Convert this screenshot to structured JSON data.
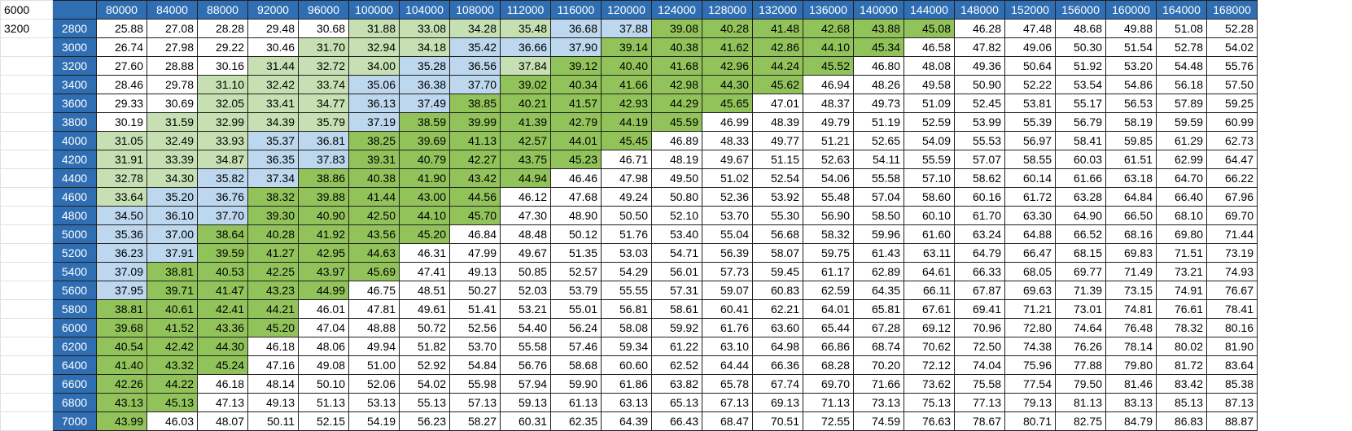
{
  "sheet": {
    "corner_a1": "6000",
    "corner_a2": "3200",
    "column_headers": [
      "80000",
      "84000",
      "88000",
      "92000",
      "96000",
      "100000",
      "104000",
      "108000",
      "112000",
      "116000",
      "120000",
      "124000",
      "128000",
      "132000",
      "136000",
      "140000",
      "144000",
      "148000",
      "152000",
      "156000",
      "160000",
      "164000",
      "168000"
    ],
    "rows": [
      {
        "label": "2800",
        "values": [
          "25.88",
          "27.08",
          "28.28",
          "29.48",
          "30.68",
          "31.88",
          "33.08",
          "34.28",
          "35.48",
          "36.68",
          "37.88",
          "39.08",
          "40.28",
          "41.48",
          "42.68",
          "43.88",
          "45.08",
          "46.28",
          "47.48",
          "48.68",
          "49.88",
          "51.08",
          "52.28"
        ],
        "colors": "WWWWWLLLLBBGGGGGGWWWWWW"
      },
      {
        "label": "3000",
        "values": [
          "26.74",
          "27.98",
          "29.22",
          "30.46",
          "31.70",
          "32.94",
          "34.18",
          "35.42",
          "36.66",
          "37.90",
          "39.14",
          "40.38",
          "41.62",
          "42.86",
          "44.10",
          "45.34",
          "46.58",
          "47.82",
          "49.06",
          "50.30",
          "51.54",
          "52.78",
          "54.02"
        ],
        "colors": "WWWWLLLBBBGGGGGGWWWWWWW"
      },
      {
        "label": "3200",
        "values": [
          "27.60",
          "28.88",
          "30.16",
          "31.44",
          "32.72",
          "34.00",
          "35.28",
          "36.56",
          "37.84",
          "39.12",
          "40.40",
          "41.68",
          "42.96",
          "44.24",
          "45.52",
          "46.80",
          "48.08",
          "49.36",
          "50.64",
          "51.92",
          "53.20",
          "54.48",
          "55.76"
        ],
        "colors": "WWWLLLBBLGGGGGGWWWWWWWW"
      },
      {
        "label": "3400",
        "values": [
          "28.46",
          "29.78",
          "31.10",
          "32.42",
          "33.74",
          "35.06",
          "36.38",
          "37.70",
          "39.02",
          "40.34",
          "41.66",
          "42.98",
          "44.30",
          "45.62",
          "46.94",
          "48.26",
          "49.58",
          "50.90",
          "52.22",
          "53.54",
          "54.86",
          "56.18",
          "57.50"
        ],
        "colors": "WWLLLBBBGGGGGGWWWWWWWWW"
      },
      {
        "label": "3600",
        "values": [
          "29.33",
          "30.69",
          "32.05",
          "33.41",
          "34.77",
          "36.13",
          "37.49",
          "38.85",
          "40.21",
          "41.57",
          "42.93",
          "44.29",
          "45.65",
          "47.01",
          "48.37",
          "49.73",
          "51.09",
          "52.45",
          "53.81",
          "55.17",
          "56.53",
          "57.89",
          "59.25"
        ],
        "colors": "WWLLLBBGGGGGGWWWWWWWWWW"
      },
      {
        "label": "3800",
        "values": [
          "30.19",
          "31.59",
          "32.99",
          "34.39",
          "35.79",
          "37.19",
          "38.59",
          "39.99",
          "41.39",
          "42.79",
          "44.19",
          "45.59",
          "46.99",
          "48.39",
          "49.79",
          "51.19",
          "52.59",
          "53.99",
          "55.39",
          "56.79",
          "58.19",
          "59.59",
          "60.99"
        ],
        "colors": "WLLLLBGGGGGGWWWWWWWWWWW"
      },
      {
        "label": "4000",
        "values": [
          "31.05",
          "32.49",
          "33.93",
          "35.37",
          "36.81",
          "38.25",
          "39.69",
          "41.13",
          "42.57",
          "44.01",
          "45.45",
          "46.89",
          "48.33",
          "49.77",
          "51.21",
          "52.65",
          "54.09",
          "55.53",
          "56.97",
          "58.41",
          "59.85",
          "61.29",
          "62.73"
        ],
        "colors": "LLLBBGGGGGGWWWWWWWWWWWW"
      },
      {
        "label": "4200",
        "values": [
          "31.91",
          "33.39",
          "34.87",
          "36.35",
          "37.83",
          "39.31",
          "40.79",
          "42.27",
          "43.75",
          "45.23",
          "46.71",
          "48.19",
          "49.67",
          "51.15",
          "52.63",
          "54.11",
          "55.59",
          "57.07",
          "58.55",
          "60.03",
          "61.51",
          "62.99",
          "64.47"
        ],
        "colors": "LLLBBGGGGGWWWWWWWWWWWWW"
      },
      {
        "label": "4400",
        "values": [
          "32.78",
          "34.30",
          "35.82",
          "37.34",
          "38.86",
          "40.38",
          "41.90",
          "43.42",
          "44.94",
          "46.46",
          "47.98",
          "49.50",
          "51.02",
          "52.54",
          "54.06",
          "55.58",
          "57.10",
          "58.62",
          "60.14",
          "61.66",
          "63.18",
          "64.70",
          "66.22"
        ],
        "colors": "LLBBGGGGGWWWWWWWWWWWWWW"
      },
      {
        "label": "4600",
        "values": [
          "33.64",
          "35.20",
          "36.76",
          "38.32",
          "39.88",
          "41.44",
          "43.00",
          "44.56",
          "46.12",
          "47.68",
          "49.24",
          "50.80",
          "52.36",
          "53.92",
          "55.48",
          "57.04",
          "58.60",
          "60.16",
          "61.72",
          "63.28",
          "64.84",
          "66.40",
          "67.96"
        ],
        "colors": "LBBGGGGGWWWWWWWWWWWWWWW"
      },
      {
        "label": "4800",
        "values": [
          "34.50",
          "36.10",
          "37.70",
          "39.30",
          "40.90",
          "42.50",
          "44.10",
          "45.70",
          "47.30",
          "48.90",
          "50.50",
          "52.10",
          "53.70",
          "55.30",
          "56.90",
          "58.50",
          "60.10",
          "61.70",
          "63.30",
          "64.90",
          "66.50",
          "68.10",
          "69.70"
        ],
        "colors": "BBBGGGGGWWWWWWWWWWWWWWW"
      },
      {
        "label": "5000",
        "values": [
          "35.36",
          "37.00",
          "38.64",
          "40.28",
          "41.92",
          "43.56",
          "45.20",
          "46.84",
          "48.48",
          "50.12",
          "51.76",
          "53.40",
          "55.04",
          "56.68",
          "58.32",
          "59.96",
          "61.60",
          "63.24",
          "64.88",
          "66.52",
          "68.16",
          "69.80",
          "71.44"
        ],
        "colors": "BBGGGGGWWWWWWWWWWWWWWWW"
      },
      {
        "label": "5200",
        "values": [
          "36.23",
          "37.91",
          "39.59",
          "41.27",
          "42.95",
          "44.63",
          "46.31",
          "47.99",
          "49.67",
          "51.35",
          "53.03",
          "54.71",
          "56.39",
          "58.07",
          "59.75",
          "61.43",
          "63.11",
          "64.79",
          "66.47",
          "68.15",
          "69.83",
          "71.51",
          "73.19"
        ],
        "colors": "BBGGGGWWWWWWWWWWWWWWWWW"
      },
      {
        "label": "5400",
        "values": [
          "37.09",
          "38.81",
          "40.53",
          "42.25",
          "43.97",
          "45.69",
          "47.41",
          "49.13",
          "50.85",
          "52.57",
          "54.29",
          "56.01",
          "57.73",
          "59.45",
          "61.17",
          "62.89",
          "64.61",
          "66.33",
          "68.05",
          "69.77",
          "71.49",
          "73.21",
          "74.93"
        ],
        "colors": "BGGGGGWWWWWWWWWWWWWWWWW"
      },
      {
        "label": "5600",
        "values": [
          "37.95",
          "39.71",
          "41.47",
          "43.23",
          "44.99",
          "46.75",
          "48.51",
          "50.27",
          "52.03",
          "53.79",
          "55.55",
          "57.31",
          "59.07",
          "60.83",
          "62.59",
          "64.35",
          "66.11",
          "67.87",
          "69.63",
          "71.39",
          "73.15",
          "74.91",
          "76.67"
        ],
        "colors": "BGGGGWWWWWWWWWWWWWWWWWW"
      },
      {
        "label": "5800",
        "values": [
          "38.81",
          "40.61",
          "42.41",
          "44.21",
          "46.01",
          "47.81",
          "49.61",
          "51.41",
          "53.21",
          "55.01",
          "56.81",
          "58.61",
          "60.41",
          "62.21",
          "64.01",
          "65.81",
          "67.61",
          "69.41",
          "71.21",
          "73.01",
          "74.81",
          "76.61",
          "78.41"
        ],
        "colors": "GGGGWWWWWWWWWWWWWWWWWWW"
      },
      {
        "label": "6000",
        "values": [
          "39.68",
          "41.52",
          "43.36",
          "45.20",
          "47.04",
          "48.88",
          "50.72",
          "52.56",
          "54.40",
          "56.24",
          "58.08",
          "59.92",
          "61.76",
          "63.60",
          "65.44",
          "67.28",
          "69.12",
          "70.96",
          "72.80",
          "74.64",
          "76.48",
          "78.32",
          "80.16"
        ],
        "colors": "GGGGWWWWWWWWWWWWWWWWWWW"
      },
      {
        "label": "6200",
        "values": [
          "40.54",
          "42.42",
          "44.30",
          "46.18",
          "48.06",
          "49.94",
          "51.82",
          "53.70",
          "55.58",
          "57.46",
          "59.34",
          "61.22",
          "63.10",
          "64.98",
          "66.86",
          "68.74",
          "70.62",
          "72.50",
          "74.38",
          "76.26",
          "78.14",
          "80.02",
          "81.90"
        ],
        "colors": "GGGWWWWWWWWWWWWWWWWWWWW"
      },
      {
        "label": "6400",
        "values": [
          "41.40",
          "43.32",
          "45.24",
          "47.16",
          "49.08",
          "51.00",
          "52.92",
          "54.84",
          "56.76",
          "58.68",
          "60.60",
          "62.52",
          "64.44",
          "66.36",
          "68.28",
          "70.20",
          "72.12",
          "74.04",
          "75.96",
          "77.88",
          "79.80",
          "81.72",
          "83.64"
        ],
        "colors": "GGGWWWWWWWWWWWWWWWWWWWW"
      },
      {
        "label": "6600",
        "values": [
          "42.26",
          "44.22",
          "46.18",
          "48.14",
          "50.10",
          "52.06",
          "54.02",
          "55.98",
          "57.94",
          "59.90",
          "61.86",
          "63.82",
          "65.78",
          "67.74",
          "69.70",
          "71.66",
          "73.62",
          "75.58",
          "77.54",
          "79.50",
          "81.46",
          "83.42",
          "85.38"
        ],
        "colors": "GGWWWWWWWWWWWWWWWWWWWWW"
      },
      {
        "label": "6800",
        "values": [
          "43.13",
          "45.13",
          "47.13",
          "49.13",
          "51.13",
          "53.13",
          "55.13",
          "57.13",
          "59.13",
          "61.13",
          "63.13",
          "65.13",
          "67.13",
          "69.13",
          "71.13",
          "73.13",
          "75.13",
          "77.13",
          "79.13",
          "81.13",
          "83.13",
          "85.13",
          "87.13"
        ],
        "colors": "GGWWWWWWWWWWWWWWWWWWWWW"
      },
      {
        "label": "7000",
        "values": [
          "43.99",
          "46.03",
          "48.07",
          "50.11",
          "52.15",
          "54.19",
          "56.23",
          "58.27",
          "60.31",
          "62.35",
          "64.39",
          "66.43",
          "68.47",
          "70.51",
          "72.55",
          "74.59",
          "76.63",
          "78.67",
          "80.71",
          "82.75",
          "84.79",
          "86.83",
          "88.87"
        ],
        "colors": "GWWWWWWWWWWWWWWWWWWWWWW"
      }
    ],
    "palette": {
      "W": "#ffffff",
      "L": "#c6e0b4",
      "B": "#bdd7ee",
      "G": "#92c35a",
      "header": "#2f6eb3"
    }
  }
}
